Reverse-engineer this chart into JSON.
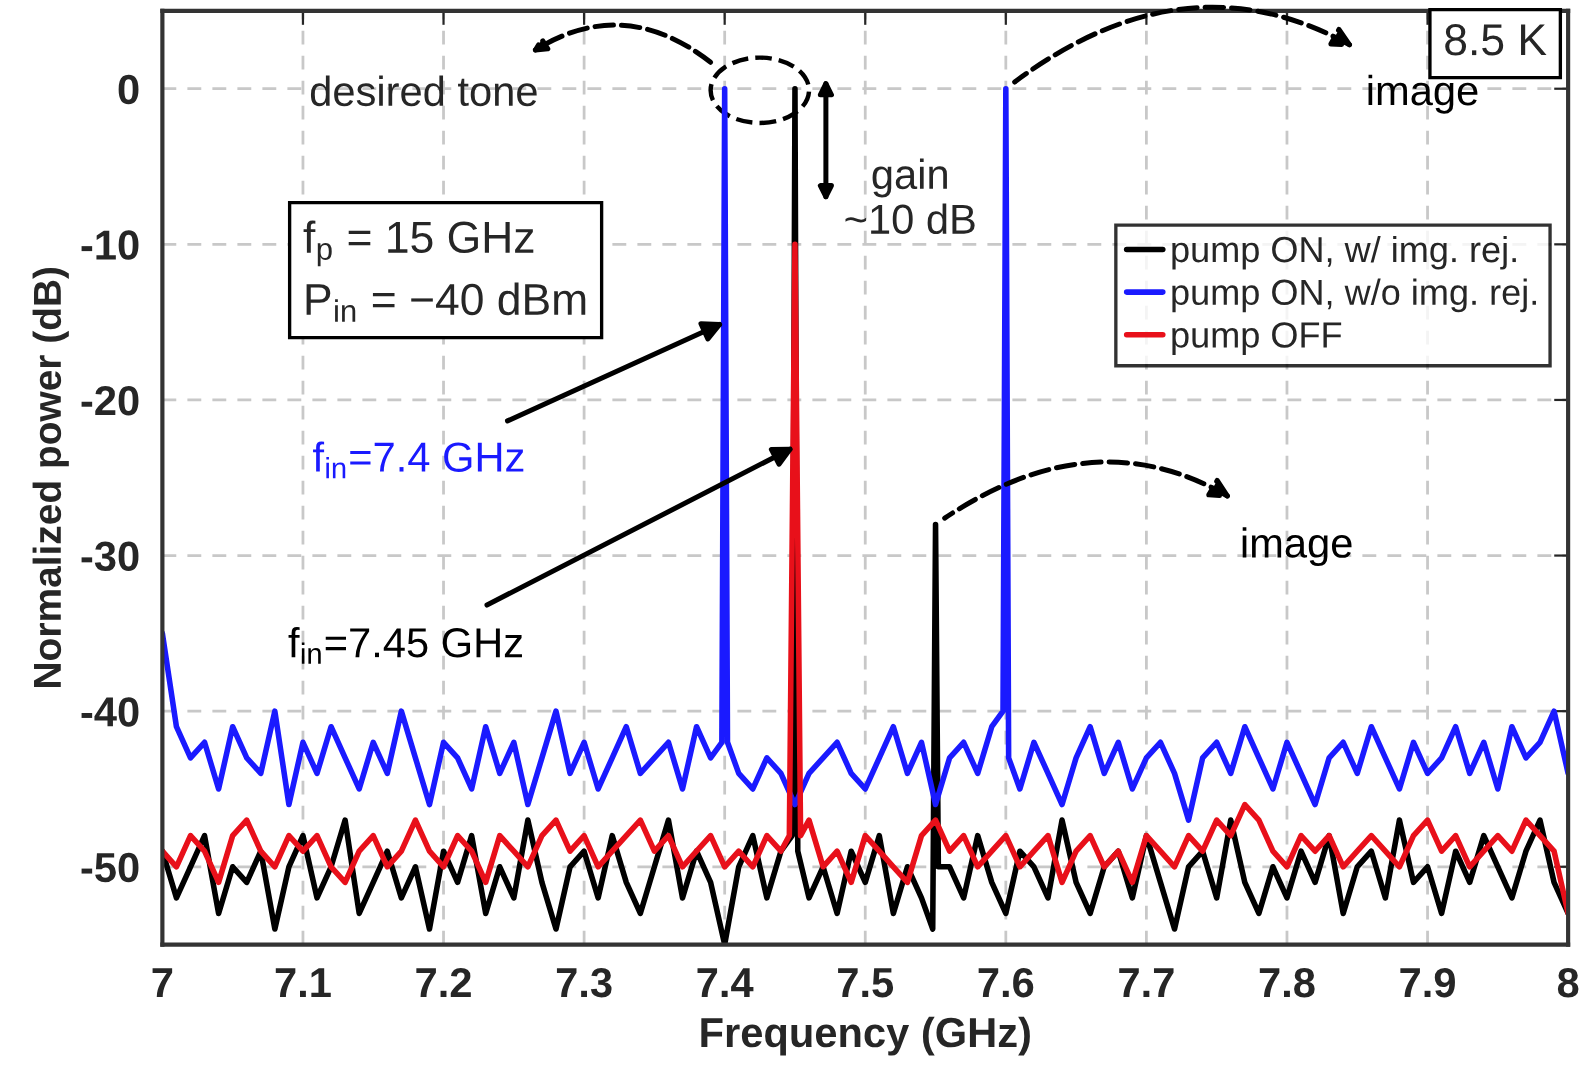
{
  "chart_data": {
    "type": "line",
    "xlabel": "Frequency (GHz)",
    "ylabel": "Normalized power (dB)",
    "xlim": [
      7,
      8
    ],
    "xticks": [
      7,
      7.1,
      7.2,
      7.3,
      7.4,
      7.5,
      7.6,
      7.7,
      7.8,
      7.9,
      8
    ],
    "ylim": [
      -55,
      5
    ],
    "yticks": [
      -50,
      -40,
      -30,
      -20,
      -10,
      0
    ],
    "grid": true,
    "legend": "top right",
    "marker": "none",
    "line_style": "solid",
    "series": [
      {
        "name": "pump ON, w/ img. rej.",
        "color": "#000000",
        "x": [
          7.0,
          7.01,
          7.02,
          7.03,
          7.04,
          7.05,
          7.06,
          7.07,
          7.08,
          7.09,
          7.1,
          7.11,
          7.12,
          7.13,
          7.14,
          7.15,
          7.16,
          7.17,
          7.18,
          7.19,
          7.2,
          7.21,
          7.22,
          7.23,
          7.24,
          7.25,
          7.26,
          7.27,
          7.28,
          7.29,
          7.3,
          7.31,
          7.32,
          7.33,
          7.34,
          7.35,
          7.36,
          7.37,
          7.38,
          7.39,
          7.4,
          7.41,
          7.42,
          7.43,
          7.44,
          7.448,
          7.45,
          7.452,
          7.46,
          7.47,
          7.48,
          7.49,
          7.5,
          7.51,
          7.52,
          7.53,
          7.54,
          7.548,
          7.55,
          7.552,
          7.56,
          7.57,
          7.58,
          7.59,
          7.6,
          7.61,
          7.62,
          7.63,
          7.64,
          7.65,
          7.66,
          7.67,
          7.68,
          7.69,
          7.7,
          7.71,
          7.72,
          7.73,
          7.74,
          7.75,
          7.76,
          7.77,
          7.78,
          7.79,
          7.8,
          7.81,
          7.82,
          7.83,
          7.84,
          7.85,
          7.86,
          7.87,
          7.88,
          7.89,
          7.9,
          7.91,
          7.92,
          7.93,
          7.94,
          7.95,
          7.96,
          7.97,
          7.98,
          7.99,
          8.0
        ],
        "values": [
          -49,
          -52,
          -50,
          -48,
          -53,
          -50,
          -51,
          -49,
          -54,
          -50,
          -48,
          -52,
          -50,
          -47,
          -53,
          -51,
          -49,
          -52,
          -50,
          -54,
          -49,
          -51,
          -48,
          -53,
          -50,
          -52,
          -47,
          -51,
          -54,
          -50,
          -49,
          -52,
          -48,
          -51,
          -53,
          -50,
          -47,
          -52,
          -49,
          -51,
          -55,
          -50,
          -48,
          -52,
          -49,
          -48,
          0,
          -49,
          -52,
          -50,
          -53,
          -49,
          -51,
          -48,
          -53,
          -50,
          -52,
          -54,
          -28,
          -50,
          -50,
          -52,
          -48,
          -51,
          -53,
          -49,
          -50,
          -52,
          -47,
          -51,
          -53,
          -50,
          -49,
          -52,
          -48,
          -51,
          -54,
          -50,
          -49,
          -52,
          -47,
          -51,
          -53,
          -50,
          -52,
          -49,
          -51,
          -48,
          -53,
          -50,
          -49,
          -52,
          -47,
          -51,
          -50,
          -53,
          -49,
          -51,
          -48,
          -50,
          -52,
          -49,
          -47,
          -51,
          -53
        ]
      },
      {
        "name": "pump ON, w/o img. rej.",
        "color": "#1a1aff",
        "x": [
          7.0,
          7.01,
          7.02,
          7.03,
          7.04,
          7.05,
          7.06,
          7.07,
          7.08,
          7.09,
          7.1,
          7.11,
          7.12,
          7.13,
          7.14,
          7.15,
          7.16,
          7.17,
          7.18,
          7.19,
          7.2,
          7.21,
          7.22,
          7.23,
          7.24,
          7.25,
          7.26,
          7.27,
          7.28,
          7.29,
          7.3,
          7.31,
          7.32,
          7.33,
          7.34,
          7.35,
          7.36,
          7.37,
          7.38,
          7.39,
          7.398,
          7.4,
          7.402,
          7.41,
          7.42,
          7.43,
          7.44,
          7.45,
          7.46,
          7.47,
          7.48,
          7.49,
          7.5,
          7.51,
          7.52,
          7.53,
          7.54,
          7.55,
          7.56,
          7.57,
          7.58,
          7.59,
          7.598,
          7.6,
          7.602,
          7.61,
          7.62,
          7.63,
          7.64,
          7.65,
          7.66,
          7.67,
          7.68,
          7.69,
          7.7,
          7.71,
          7.72,
          7.73,
          7.74,
          7.75,
          7.76,
          7.77,
          7.78,
          7.79,
          7.8,
          7.81,
          7.82,
          7.83,
          7.84,
          7.85,
          7.86,
          7.87,
          7.88,
          7.89,
          7.9,
          7.91,
          7.92,
          7.93,
          7.94,
          7.95,
          7.96,
          7.97,
          7.98,
          7.99,
          8.0
        ],
        "values": [
          -35,
          -41,
          -43,
          -42,
          -45,
          -41,
          -43,
          -44,
          -40,
          -46,
          -42,
          -44,
          -41,
          -43,
          -45,
          -42,
          -44,
          -40,
          -43,
          -46,
          -42,
          -43,
          -45,
          -41,
          -44,
          -42,
          -46,
          -43,
          -40,
          -44,
          -42,
          -45,
          -43,
          -41,
          -44,
          -43,
          -42,
          -45,
          -41,
          -43,
          -42,
          0,
          -42,
          -44,
          -45,
          -43,
          -44,
          -46,
          -44,
          -43,
          -42,
          -44,
          -45,
          -43,
          -41,
          -44,
          -42,
          -46,
          -43,
          -42,
          -44,
          -41,
          -40,
          0,
          -43,
          -45,
          -42,
          -44,
          -46,
          -43,
          -41,
          -44,
          -42,
          -45,
          -43,
          -42,
          -44,
          -47,
          -43,
          -42,
          -44,
          -41,
          -43,
          -45,
          -42,
          -44,
          -46,
          -43,
          -42,
          -44,
          -41,
          -43,
          -45,
          -42,
          -44,
          -43,
          -41,
          -44,
          -42,
          -45,
          -41,
          -43,
          -42,
          -40,
          -44
        ]
      },
      {
        "name": "pump OFF",
        "color": "#e8101a",
        "x": [
          7.0,
          7.01,
          7.02,
          7.03,
          7.04,
          7.05,
          7.06,
          7.07,
          7.08,
          7.09,
          7.1,
          7.11,
          7.12,
          7.13,
          7.14,
          7.15,
          7.16,
          7.17,
          7.18,
          7.19,
          7.2,
          7.21,
          7.22,
          7.23,
          7.24,
          7.25,
          7.26,
          7.27,
          7.28,
          7.29,
          7.3,
          7.31,
          7.32,
          7.33,
          7.34,
          7.35,
          7.36,
          7.37,
          7.38,
          7.39,
          7.4,
          7.41,
          7.42,
          7.43,
          7.44,
          7.446,
          7.45,
          7.454,
          7.46,
          7.47,
          7.48,
          7.49,
          7.5,
          7.51,
          7.52,
          7.53,
          7.54,
          7.55,
          7.56,
          7.57,
          7.58,
          7.59,
          7.6,
          7.61,
          7.62,
          7.63,
          7.64,
          7.65,
          7.66,
          7.67,
          7.68,
          7.69,
          7.7,
          7.71,
          7.72,
          7.73,
          7.74,
          7.75,
          7.76,
          7.77,
          7.78,
          7.79,
          7.8,
          7.81,
          7.82,
          7.83,
          7.84,
          7.85,
          7.86,
          7.87,
          7.88,
          7.89,
          7.9,
          7.91,
          7.92,
          7.93,
          7.94,
          7.95,
          7.96,
          7.97,
          7.98,
          7.99,
          8.0
        ],
        "values": [
          -49,
          -50,
          -48,
          -49,
          -51,
          -48,
          -47,
          -49,
          -50,
          -48,
          -49,
          -48,
          -50,
          -51,
          -49,
          -48,
          -50,
          -49,
          -47,
          -49,
          -50,
          -48,
          -49,
          -51,
          -48,
          -49,
          -50,
          -48,
          -47,
          -49,
          -48,
          -50,
          -49,
          -48,
          -47,
          -49,
          -48,
          -50,
          -49,
          -48,
          -50,
          -49,
          -50,
          -48,
          -49,
          -48,
          -10,
          -48,
          -47,
          -50,
          -49,
          -51,
          -48,
          -49,
          -50,
          -51,
          -48,
          -47,
          -49,
          -48,
          -50,
          -49,
          -48,
          -50,
          -49,
          -48,
          -51,
          -49,
          -48,
          -50,
          -49,
          -51,
          -48,
          -49,
          -50,
          -48,
          -49,
          -47,
          -48,
          -46,
          -47,
          -49,
          -50,
          -48,
          -49,
          -48,
          -50,
          -49,
          -48,
          -49,
          -50,
          -48,
          -47,
          -49,
          -48,
          -50,
          -49,
          -48,
          -49,
          -47,
          -48,
          -49,
          -53
        ]
      }
    ],
    "annotations": [
      "desired tone",
      {
        "text": "image",
        "x": 7.6,
        "y": 0
      },
      {
        "text": "image",
        "x": 7.55,
        "y": -28
      },
      "gain\n~10 dB",
      {
        "text": "f$_{in}$=7.4 GHz",
        "x": 7.4,
        "y": -15
      },
      {
        "text": "f$_{in}$=7.45 GHz",
        "x": 7.45,
        "y": -23
      },
      "f$_{p}$ = 15 GHz\nP$_{in}$ = −40 dBm",
      "8.5 K"
    ]
  }
}
